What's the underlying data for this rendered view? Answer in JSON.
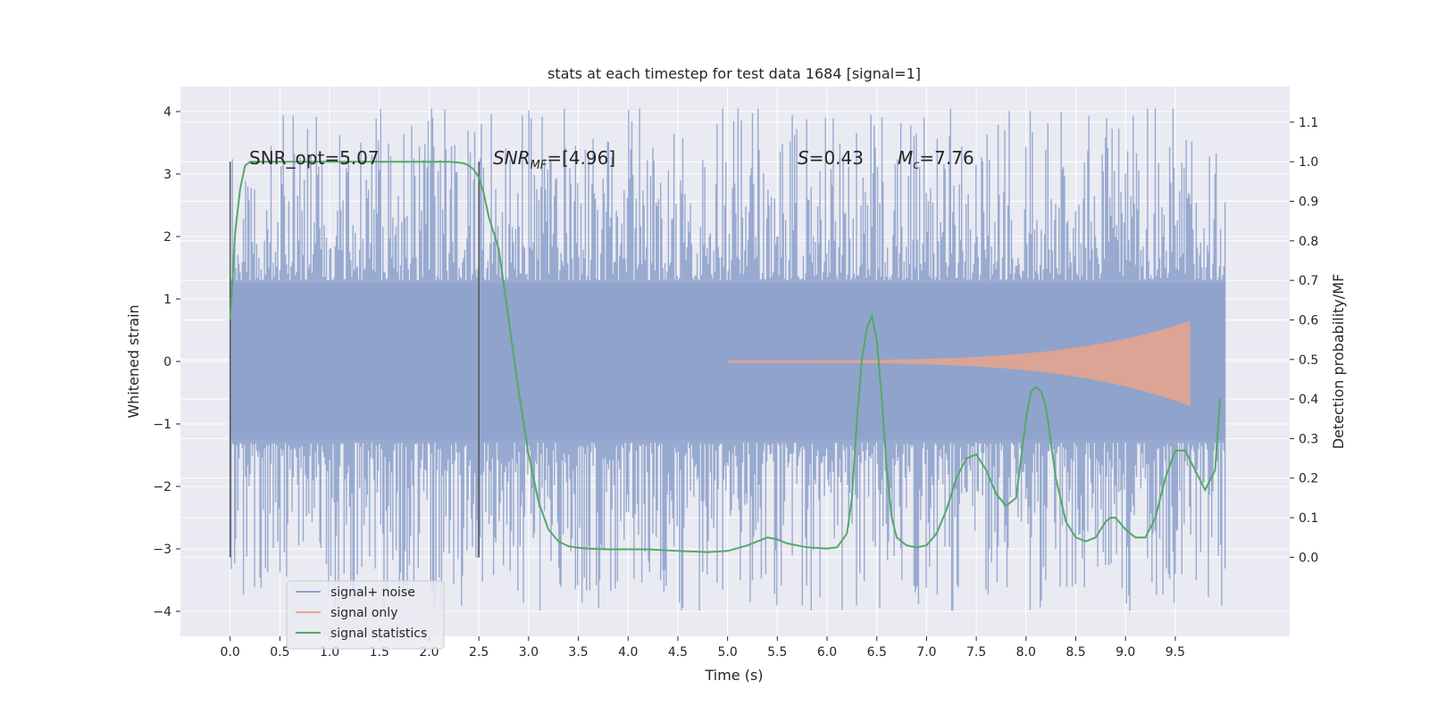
{
  "chart_data": {
    "type": "line",
    "title": "stats at each timestep for test data 1684 [signal=1]",
    "xlabel": "Time (s)",
    "ylabel": "Whitened strain",
    "ylabel_right": "Detection probability/MF",
    "xlim": [
      -0.5,
      10.65
    ],
    "ylim": [
      -4.4,
      4.4
    ],
    "ylim_right": [
      -0.2,
      1.19
    ],
    "x_ticks": [
      "0.0",
      "0.5",
      "1.0",
      "1.5",
      "2.0",
      "2.5",
      "3.0",
      "3.5",
      "4.0",
      "4.5",
      "5.0",
      "5.5",
      "6.0",
      "6.5",
      "7.0",
      "7.5",
      "8.0",
      "8.5",
      "9.0",
      "9.5"
    ],
    "x_tick_values": [
      0.0,
      0.5,
      1.0,
      1.5,
      2.0,
      2.5,
      3.0,
      3.5,
      4.0,
      4.5,
      5.0,
      5.5,
      6.0,
      6.5,
      7.0,
      7.5,
      8.0,
      8.5,
      9.0,
      9.5
    ],
    "y_ticks": [
      "4",
      "3",
      "2",
      "1",
      "0",
      "−1",
      "−2",
      "−3",
      "−4"
    ],
    "y_tick_values": [
      4,
      3,
      2,
      1,
      0,
      -1,
      -2,
      -3,
      -4
    ],
    "y_right_ticks": [
      "1.1",
      "1.0",
      "0.9",
      "0.8",
      "0.7",
      "0.6",
      "0.5",
      "0.4",
      "0.3",
      "0.2",
      "0.1",
      "0.0"
    ],
    "y_right_tick_values": [
      1.1,
      1.0,
      0.9,
      0.8,
      0.7,
      0.6,
      0.5,
      0.4,
      0.3,
      0.2,
      0.1,
      0.0
    ],
    "grid": true,
    "legend_position": "lower-left",
    "legend": [
      {
        "label": "signal+ noise",
        "color": "#8fa3cc"
      },
      {
        "label": "signal only",
        "color": "#e9a58a"
      },
      {
        "label": "signal statistics",
        "color": "#55a868"
      }
    ],
    "annotations": [
      {
        "text": "SNR_opt=5.07"
      },
      {
        "text_main": "SNR",
        "text_sub": "MF",
        "text_rest": "=[4.96]"
      },
      {
        "text_main": "S",
        "text_rest": "=0.43"
      },
      {
        "text_main": "M",
        "text_sub": "c",
        "text_rest": "=7.76"
      }
    ],
    "vertical_lines": [
      0.0,
      2.5
    ],
    "series": [
      {
        "name": "signal+ noise",
        "kind": "noise",
        "x_range": [
          0.0,
          10.0
        ],
        "band": [
          -1.25,
          1.25
        ],
        "peak_max": 4.05,
        "peak_min": -4.0
      },
      {
        "name": "signal only",
        "kind": "chirp",
        "x_range": [
          5.0,
          9.65
        ],
        "envelope_end": 0.65,
        "envelope_end_low": -0.8
      },
      {
        "name": "signal statistics",
        "axis": "right",
        "x": [
          0.0,
          0.05,
          0.1,
          0.15,
          0.2,
          0.3,
          0.5,
          1.0,
          1.5,
          2.0,
          2.2,
          2.3,
          2.35,
          2.4,
          2.45,
          2.5,
          2.55,
          2.6,
          2.7,
          2.8,
          2.9,
          3.0,
          3.1,
          3.2,
          3.3,
          3.4,
          3.5,
          3.6,
          3.8,
          4.0,
          4.2,
          4.5,
          4.8,
          5.0,
          5.2,
          5.3,
          5.4,
          5.5,
          5.6,
          5.8,
          6.0,
          6.1,
          6.2,
          6.25,
          6.3,
          6.35,
          6.4,
          6.45,
          6.5,
          6.55,
          6.6,
          6.65,
          6.7,
          6.8,
          6.9,
          7.0,
          7.1,
          7.2,
          7.3,
          7.4,
          7.5,
          7.6,
          7.7,
          7.8,
          7.9,
          8.0,
          8.05,
          8.1,
          8.15,
          8.2,
          8.3,
          8.4,
          8.5,
          8.6,
          8.7,
          8.8,
          8.85,
          8.9,
          9.0,
          9.1,
          9.2,
          9.3,
          9.4,
          9.5,
          9.6,
          9.7,
          9.8,
          9.9,
          9.95
        ],
        "y": [
          0.6,
          0.82,
          0.93,
          0.99,
          1.0,
          1.0,
          1.0,
          1.0,
          1.0,
          1.0,
          1.0,
          0.998,
          0.996,
          0.99,
          0.98,
          0.96,
          0.92,
          0.86,
          0.78,
          0.6,
          0.42,
          0.26,
          0.14,
          0.07,
          0.04,
          0.028,
          0.024,
          0.022,
          0.02,
          0.02,
          0.02,
          0.016,
          0.013,
          0.016,
          0.03,
          0.04,
          0.05,
          0.045,
          0.035,
          0.025,
          0.022,
          0.025,
          0.06,
          0.15,
          0.35,
          0.5,
          0.58,
          0.61,
          0.55,
          0.4,
          0.22,
          0.1,
          0.05,
          0.03,
          0.025,
          0.03,
          0.06,
          0.12,
          0.2,
          0.25,
          0.26,
          0.22,
          0.16,
          0.13,
          0.15,
          0.35,
          0.42,
          0.43,
          0.42,
          0.38,
          0.2,
          0.09,
          0.05,
          0.04,
          0.05,
          0.09,
          0.1,
          0.1,
          0.07,
          0.05,
          0.05,
          0.1,
          0.2,
          0.27,
          0.27,
          0.22,
          0.17,
          0.22,
          0.4
        ]
      }
    ]
  }
}
